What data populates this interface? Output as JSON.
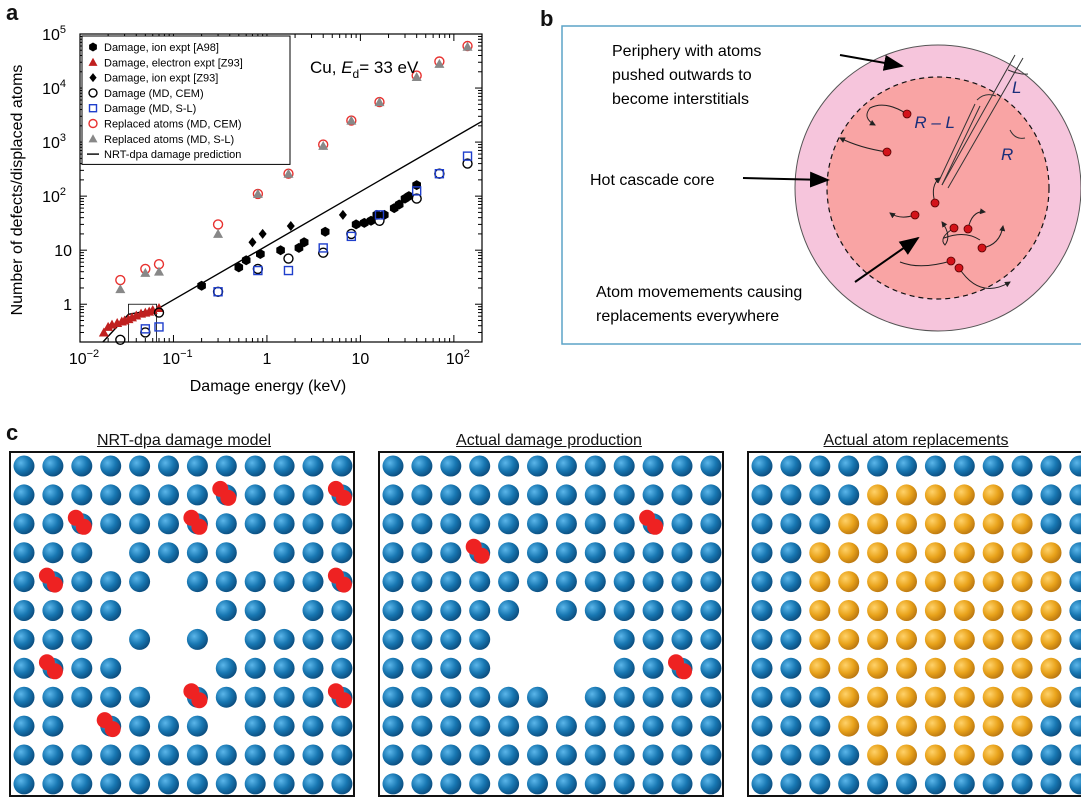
{
  "panel_letters": {
    "a": "a",
    "b": "b",
    "c": "c"
  },
  "chart_data": {
    "type": "scatter",
    "xlabel": "Damage energy (keV)",
    "ylabel": "Number of defects/displaced atoms",
    "x_scale": "log",
    "y_scale": "log",
    "xlim": [
      0.01,
      200
    ],
    "ylim": [
      0.2,
      100000
    ],
    "annotation": "Cu, E_d = 33 eV",
    "annotation_parts": {
      "prefix": "Cu, ",
      "var": "E",
      "sub": "d",
      "suffix": "= 33 eV"
    },
    "x_ticks": [
      {
        "value": 0.01,
        "base": "10",
        "exp": "−2"
      },
      {
        "value": 0.1,
        "base": "10",
        "exp": "−1"
      },
      {
        "value": 1,
        "base": "1",
        "exp": ""
      },
      {
        "value": 10,
        "base": "10",
        "exp": ""
      },
      {
        "value": 100,
        "base": "10",
        "exp": "2"
      }
    ],
    "y_ticks": [
      {
        "value": 1,
        "base": "1",
        "exp": ""
      },
      {
        "value": 10,
        "base": "10",
        "exp": ""
      },
      {
        "value": 100,
        "base": "10",
        "exp": "2"
      },
      {
        "value": 1000,
        "base": "10",
        "exp": "3"
      },
      {
        "value": 10000,
        "base": "10",
        "exp": "4"
      },
      {
        "value": 100000,
        "base": "10",
        "exp": "5"
      }
    ],
    "legend_position": "top-left",
    "series": [
      {
        "name": "Damage, ion expt [A98]",
        "marker": "hexagon",
        "color": "#000000",
        "points": [
          [
            0.2,
            2.2
          ],
          [
            0.5,
            4.8
          ],
          [
            0.6,
            6.5
          ],
          [
            0.85,
            8.5
          ],
          [
            1.4,
            10
          ],
          [
            2.2,
            11
          ],
          [
            2.5,
            14
          ],
          [
            4.2,
            22
          ],
          [
            9,
            30
          ],
          [
            11,
            32
          ],
          [
            13,
            35
          ],
          [
            15,
            45
          ],
          [
            18,
            45
          ],
          [
            23,
            60
          ],
          [
            26,
            70
          ],
          [
            30,
            90
          ],
          [
            33,
            100
          ],
          [
            40,
            160
          ]
        ]
      },
      {
        "name": "Damage, electron expt [Z93]",
        "marker": "triangle",
        "color": "#c0201f",
        "points": [
          [
            0.018,
            0.3
          ],
          [
            0.02,
            0.38
          ],
          [
            0.022,
            0.42
          ],
          [
            0.025,
            0.45
          ],
          [
            0.028,
            0.48
          ],
          [
            0.03,
            0.5
          ],
          [
            0.033,
            0.53
          ],
          [
            0.036,
            0.57
          ],
          [
            0.04,
            0.62
          ],
          [
            0.045,
            0.67
          ],
          [
            0.05,
            0.7
          ],
          [
            0.055,
            0.73
          ],
          [
            0.06,
            0.78
          ],
          [
            0.07,
            0.85
          ]
        ]
      },
      {
        "name": "Damage, ion expt [Z93]",
        "marker": "diamond",
        "color": "#000000",
        "points": [
          [
            0.7,
            14
          ],
          [
            0.9,
            20
          ],
          [
            1.8,
            28
          ],
          [
            6.5,
            45
          ]
        ]
      },
      {
        "name": "Damage (MD, CEM)",
        "marker": "circle-open",
        "color": "#000000",
        "points": [
          [
            0.027,
            0.22
          ],
          [
            0.05,
            0.3
          ],
          [
            0.07,
            0.7
          ],
          [
            0.3,
            1.7
          ],
          [
            0.8,
            4.5
          ],
          [
            1.7,
            7
          ],
          [
            4,
            9
          ],
          [
            8,
            20
          ],
          [
            16,
            35
          ],
          [
            40,
            90
          ],
          [
            70,
            260
          ],
          [
            140,
            400
          ]
        ]
      },
      {
        "name": "Damage (MD, S-L)",
        "marker": "square-open",
        "color": "#1f3fcc",
        "points": [
          [
            0.05,
            0.35
          ],
          [
            0.07,
            0.38
          ],
          [
            0.3,
            1.7
          ],
          [
            0.8,
            4.2
          ],
          [
            1.7,
            4.2
          ],
          [
            4,
            11
          ],
          [
            8,
            18
          ],
          [
            16,
            45
          ],
          [
            40,
            125
          ],
          [
            70,
            260
          ],
          [
            140,
            550
          ]
        ]
      },
      {
        "name": "Replaced atoms (MD, CEM)",
        "marker": "circle-open",
        "color": "#e8312f",
        "points": [
          [
            0.027,
            2.8
          ],
          [
            0.05,
            4.5
          ],
          [
            0.07,
            5.5
          ],
          [
            0.3,
            30
          ],
          [
            0.8,
            110
          ],
          [
            1.7,
            260
          ],
          [
            4,
            900
          ],
          [
            8,
            2500
          ],
          [
            16,
            5500
          ],
          [
            40,
            17000
          ],
          [
            70,
            31000
          ],
          [
            140,
            60000
          ]
        ]
      },
      {
        "name": "Replaced atoms (MD, S-L)",
        "marker": "triangle",
        "color": "#888888",
        "points": [
          [
            0.027,
            1.9
          ],
          [
            0.05,
            3.8
          ],
          [
            0.07,
            4
          ],
          [
            0.3,
            20
          ],
          [
            0.8,
            110
          ],
          [
            1.7,
            260
          ],
          [
            4,
            850
          ],
          [
            8,
            2500
          ],
          [
            16,
            5500
          ],
          [
            40,
            16000
          ],
          [
            70,
            28000
          ],
          [
            140,
            58000
          ]
        ]
      },
      {
        "name": "NRT-dpa damage prediction",
        "marker": "line",
        "color": "#000000",
        "points": [
          [
            0.0176,
            0.2
          ],
          [
            0.033,
            0.65
          ],
          [
            0.066,
            0.8
          ],
          [
            0.0825,
            1.0
          ],
          [
            200,
            2424
          ]
        ]
      }
    ]
  },
  "schematic": {
    "periphery_label_1": "Periphery with atoms",
    "periphery_label_2": "pushed outwards to",
    "periphery_label_3": "become interstitials",
    "core_label": "Hot cascade core",
    "movement_label_1": "Atom movemements causing",
    "movement_label_2": "replacements everywhere",
    "radius_l": "L",
    "radius_r_minus_l": "R – L",
    "radius_r": "R",
    "colors": {
      "periphery": "#f6c5dc",
      "core": "#f9a4a4",
      "atom": "#d3131a",
      "border": "#5ca3c7"
    }
  },
  "lattices": {
    "titles": [
      "NRT-dpa damage model",
      "Actual damage production",
      "Actual atom replacements"
    ],
    "colors": {
      "atom": "#1778b4",
      "defect": "#ee2222",
      "replaced": "#e8a41c"
    }
  }
}
